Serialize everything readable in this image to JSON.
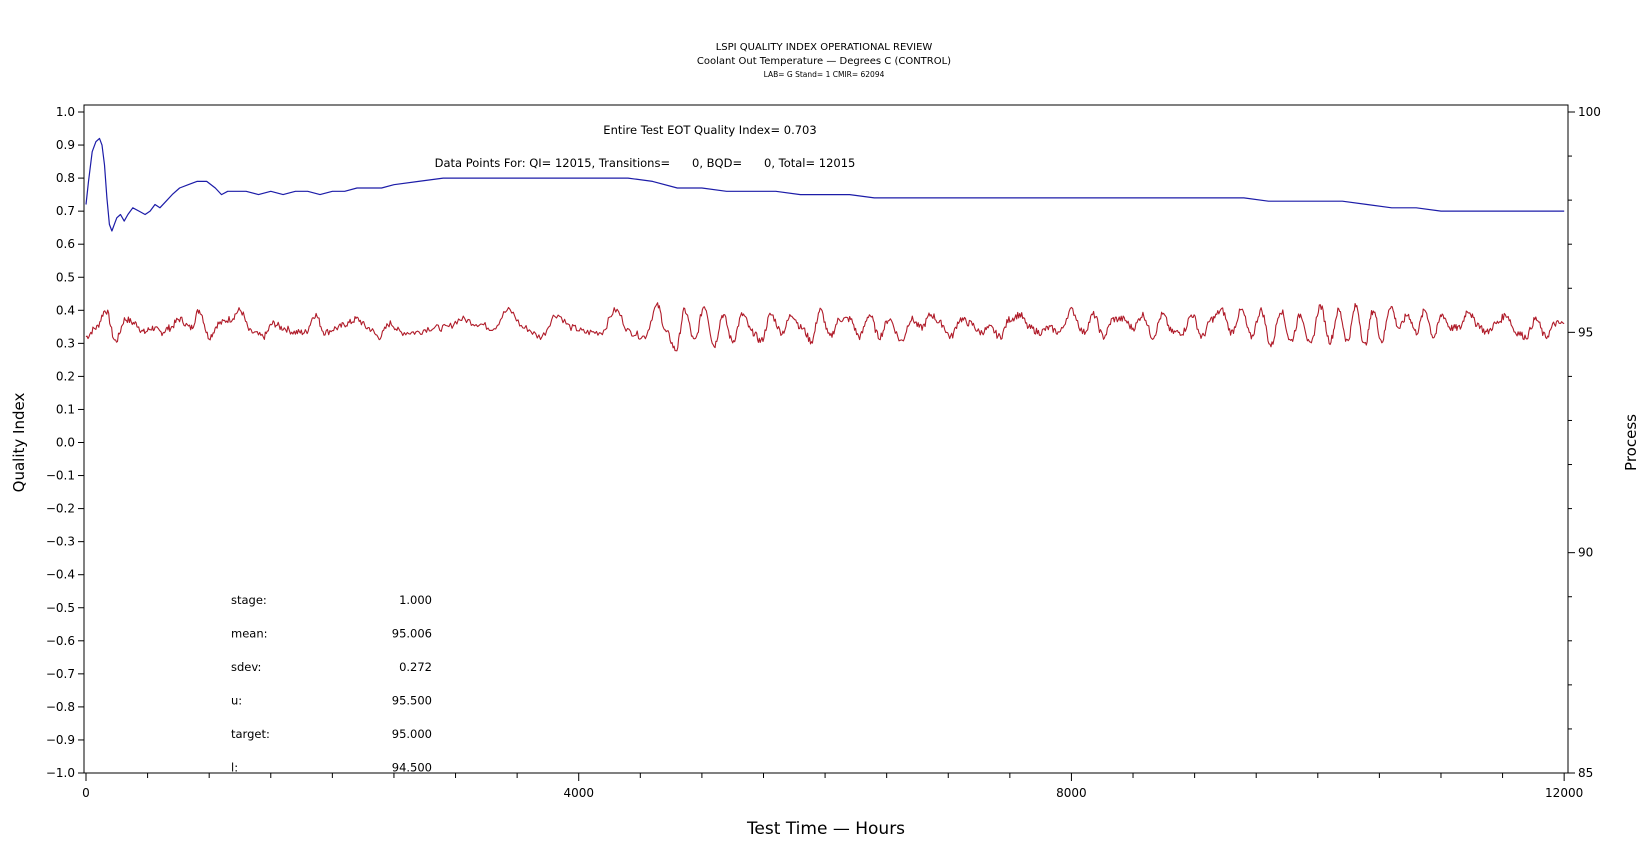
{
  "chart_data": {
    "type": "line",
    "title": "LSPI QUALITY INDEX OPERATIONAL REVIEW",
    "subtitle": "Coolant Out Temperature — Degrees C (CONTROL)",
    "subsubtitle": "LAB= G Stand= 1 CMIR= 62094",
    "xlabel": "Test Time — Hours",
    "ylabel": "Quality Index",
    "y2label": "Process",
    "xlim": [
      0,
      12015
    ],
    "ylim": [
      -1.0,
      1.0
    ],
    "y2lim": [
      85,
      100
    ],
    "xticks": [
      "0",
      "4000",
      "8000",
      "12000"
    ],
    "yticks": [
      "1.0",
      "0.9",
      "0.8",
      "0.7",
      "0.6",
      "0.5",
      "0.4",
      "0.3",
      "0.2",
      "0.1",
      "0.0",
      "−0.1",
      "−0.2",
      "−0.3",
      "−0.4",
      "−0.5",
      "−0.6",
      "−0.7",
      "−0.8",
      "−0.9",
      "−1.0"
    ],
    "y2ticks": [
      "100",
      "95",
      "90",
      "85"
    ],
    "annotations": [
      "Entire Test EOT Quality Index=   0.703",
      "Data Points For: QI= 12015, Transitions=      0, BQD=      0, Total= 12015"
    ],
    "stats": [
      {
        "label": "stage:",
        "value": "1.000"
      },
      {
        "label": "mean:",
        "value": "95.006"
      },
      {
        "label": "sdev:",
        "value": "0.272"
      },
      {
        "label": "u:",
        "value": "95.500"
      },
      {
        "label": "target:",
        "value": "95.000"
      },
      {
        "label": "l:",
        "value": "94.500"
      }
    ],
    "colors": {
      "quality_index": "#1c1ca8",
      "process": "#b01c2a",
      "axes": "#000000"
    },
    "series": [
      {
        "axis": "left",
        "x": [
          0,
          20,
          50,
          80,
          110,
          130,
          150,
          170,
          190,
          210,
          230,
          250,
          280,
          310,
          340,
          380,
          430,
          480,
          520,
          560,
          600,
          650,
          700,
          760,
          830,
          900,
          980,
          1050,
          1100,
          1150,
          1200,
          1300,
          1400,
          1500,
          1600,
          1700,
          1800,
          1900,
          2000,
          2100,
          2200,
          2300,
          2400,
          2500,
          2700,
          2900,
          3000,
          3200,
          3400,
          3600,
          3800,
          4000,
          4200,
          4400,
          4600,
          4800,
          5000,
          5200,
          5400,
          5600,
          5800,
          6000,
          6200,
          6400,
          6600,
          6800,
          7000,
          7200,
          7400,
          7600,
          7800,
          8000,
          8200,
          8400,
          8600,
          8800,
          9000,
          9200,
          9400,
          9600,
          9800,
          10000,
          10200,
          10400,
          10600,
          10800,
          11000,
          11200,
          11400,
          11600,
          11800,
          12000
        ],
        "values": [
          0.72,
          0.79,
          0.88,
          0.91,
          0.92,
          0.9,
          0.84,
          0.74,
          0.66,
          0.64,
          0.66,
          0.68,
          0.69,
          0.67,
          0.69,
          0.71,
          0.7,
          0.69,
          0.7,
          0.72,
          0.71,
          0.73,
          0.75,
          0.77,
          0.78,
          0.79,
          0.79,
          0.77,
          0.75,
          0.76,
          0.76,
          0.76,
          0.75,
          0.76,
          0.75,
          0.76,
          0.76,
          0.75,
          0.76,
          0.76,
          0.77,
          0.77,
          0.77,
          0.78,
          0.79,
          0.8,
          0.8,
          0.8,
          0.8,
          0.8,
          0.8,
          0.8,
          0.8,
          0.8,
          0.79,
          0.77,
          0.77,
          0.76,
          0.76,
          0.76,
          0.75,
          0.75,
          0.75,
          0.74,
          0.74,
          0.74,
          0.74,
          0.74,
          0.74,
          0.74,
          0.74,
          0.74,
          0.74,
          0.74,
          0.74,
          0.74,
          0.74,
          0.74,
          0.74,
          0.73,
          0.73,
          0.73,
          0.73,
          0.72,
          0.71,
          0.71,
          0.7,
          0.7,
          0.7,
          0.7,
          0.7,
          0.7
        ]
      },
      {
        "axis": "right",
        "x": [
          0,
          80,
          160,
          240,
          320,
          400,
          470,
          540,
          610,
          680,
          760,
          850,
          920,
          1000,
          1080,
          1170,
          1250,
          1340,
          1440,
          1520,
          1600,
          1700,
          1780,
          1860,
          1940,
          2040,
          2120,
          2200,
          2290,
          2380,
          2470,
          2560,
          2680,
          2800,
          2920,
          3050,
          3180,
          3300,
          3430,
          3560,
          3690,
          3820,
          3950,
          4060,
          4180,
          4300,
          4420,
          4530,
          4640,
          4710,
          4790,
          4860,
          4940,
          5020,
          5100,
          5170,
          5250,
          5330,
          5410,
          5480,
          5560,
          5650,
          5730,
          5810,
          5890,
          5960,
          6040,
          6120,
          6200,
          6280,
          6360,
          6440,
          6520,
          6620,
          6700,
          6780,
          6860,
          6940,
          7020,
          7100,
          7180,
          7260,
          7340,
          7420,
          7500,
          7580,
          7660,
          7740,
          7820,
          7900,
          8000,
          8100,
          8180,
          8260,
          8340,
          8420,
          8500,
          8580,
          8660,
          8740,
          8820,
          8900,
          8980,
          9060,
          9140,
          9220,
          9300,
          9380,
          9460,
          9540,
          9620,
          9700,
          9780,
          9860,
          9940,
          10020,
          10100,
          10170,
          10240,
          10310,
          10380,
          10450,
          10520,
          10590,
          10660,
          10730,
          10800,
          10870,
          10940,
          11010,
          11080,
          11150,
          11220,
          11290,
          11370,
          11450,
          11530,
          11610,
          11690,
          11770,
          11850,
          11930,
          12000
        ],
        "values": [
          94.9,
          95.1,
          95.5,
          94.8,
          95.3,
          95.2,
          95.0,
          95.1,
          95.0,
          95.1,
          95.3,
          95.1,
          95.5,
          94.9,
          95.2,
          95.3,
          95.5,
          95.0,
          94.9,
          95.2,
          95.1,
          95.0,
          95.0,
          95.4,
          95.0,
          95.1,
          95.2,
          95.3,
          95.1,
          94.9,
          95.2,
          95.0,
          95.0,
          95.1,
          95.1,
          95.3,
          95.2,
          95.1,
          95.5,
          95.1,
          94.9,
          95.4,
          95.1,
          95.0,
          95.0,
          95.5,
          95.0,
          94.9,
          95.6,
          95.0,
          94.6,
          95.5,
          94.8,
          95.6,
          94.7,
          95.4,
          94.8,
          95.4,
          95.0,
          94.8,
          95.4,
          95.0,
          95.4,
          95.1,
          94.8,
          95.5,
          94.9,
          95.3,
          95.3,
          94.9,
          95.4,
          94.9,
          95.3,
          94.8,
          95.3,
          95.1,
          95.4,
          95.2,
          94.9,
          95.3,
          95.2,
          95.0,
          95.1,
          94.9,
          95.3,
          95.4,
          95.1,
          95.0,
          95.1,
          95.0,
          95.5,
          95.0,
          95.4,
          94.9,
          95.3,
          95.3,
          95.1,
          95.4,
          94.9,
          95.4,
          95.0,
          95.0,
          95.4,
          94.9,
          95.3,
          95.5,
          95.0,
          95.5,
          94.9,
          95.5,
          94.7,
          95.5,
          94.8,
          95.4,
          94.7,
          95.6,
          94.8,
          95.5,
          94.8,
          95.6,
          94.7,
          95.5,
          94.8,
          95.6,
          95.1,
          95.4,
          95.0,
          95.5,
          94.9,
          95.4,
          95.1,
          95.1,
          95.5,
          95.2,
          95.0,
          95.2,
          95.4,
          95.0,
          94.9,
          95.3,
          94.9,
          95.2,
          95.2
        ]
      }
    ]
  }
}
